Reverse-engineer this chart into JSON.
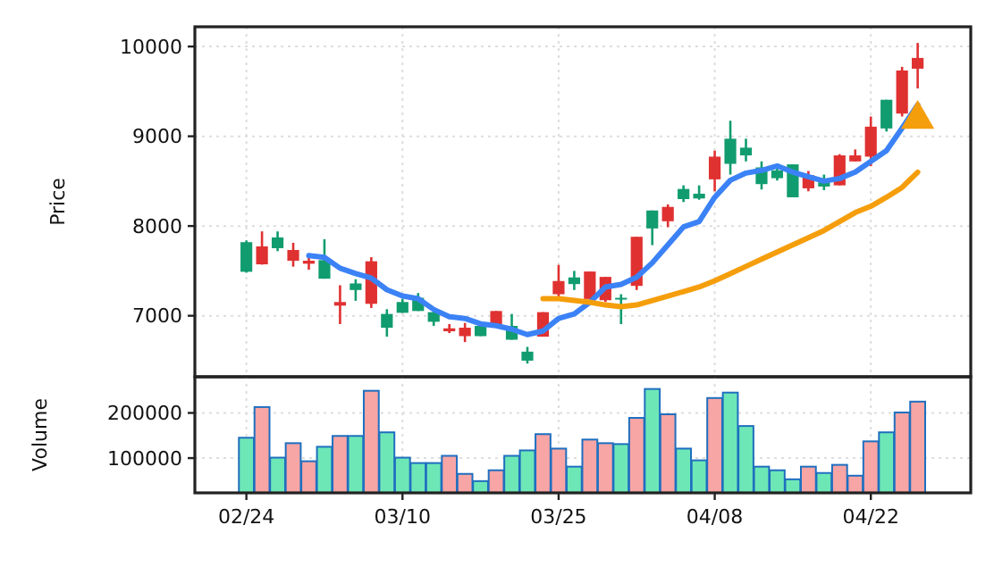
{
  "chart_data": [
    {
      "type": "candlestick",
      "ylabel": "Price",
      "grid": true,
      "tick_labels": "y",
      "ylim": [
        6320,
        10220
      ],
      "yticks": [
        7000,
        8000,
        9000,
        10000
      ],
      "categories": [
        null,
        null,
        null,
        null,
        null,
        null,
        null,
        null,
        null,
        null,
        null,
        null,
        null,
        null,
        null,
        null,
        null,
        null,
        null,
        null,
        null,
        null,
        null,
        null,
        null,
        null,
        null,
        null,
        null,
        null,
        null,
        null,
        null,
        null,
        null,
        null,
        null,
        null,
        null,
        null,
        null,
        null,
        null,
        null
      ],
      "ohlc": [
        [
          7490,
          7840,
          7480,
          7820
        ],
        [
          7773,
          7940,
          7570,
          7573
        ],
        [
          7753,
          7940,
          7720,
          7873
        ],
        [
          7733,
          7813,
          7547,
          7613
        ],
        [
          7613,
          7653,
          7513,
          7580
        ],
        [
          7413,
          7853,
          7413,
          7620
        ],
        [
          7153,
          7340,
          6907,
          7113
        ],
        [
          7287,
          7407,
          7167,
          7360
        ],
        [
          7607,
          7653,
          7087,
          7133
        ],
        [
          6867,
          7073,
          6767,
          7020
        ],
        [
          7033,
          7187,
          7033,
          7153
        ],
        [
          7053,
          7253,
          7053,
          7200
        ],
        [
          6933,
          7053,
          6887,
          7040
        ],
        [
          6860,
          6907,
          6807,
          6827
        ],
        [
          6867,
          6920,
          6707,
          6773
        ],
        [
          6773,
          6920,
          6773,
          6887
        ],
        [
          7053,
          7053,
          6907,
          6907
        ],
        [
          6733,
          7020,
          6733,
          6887
        ],
        [
          6500,
          6653,
          6467,
          6600
        ],
        [
          7040,
          7040,
          6767,
          6767
        ],
        [
          7387,
          7567,
          7200,
          7240
        ],
        [
          7353,
          7500,
          7287,
          7427
        ],
        [
          7493,
          7493,
          7187,
          7187
        ],
        [
          7433,
          7433,
          7153,
          7173
        ],
        [
          7187,
          7240,
          6907,
          7200
        ],
        [
          7880,
          7880,
          7287,
          7333
        ],
        [
          7973,
          8173,
          7787,
          8173
        ],
        [
          8213,
          8240,
          7987,
          8053
        ],
        [
          8300,
          8453,
          8267,
          8413
        ],
        [
          8307,
          8453,
          8293,
          8360
        ],
        [
          8773,
          8840,
          8387,
          8520
        ],
        [
          8693,
          9173,
          8573,
          8973
        ],
        [
          8787,
          8973,
          8720,
          8873
        ],
        [
          8467,
          8720,
          8407,
          8653
        ],
        [
          8533,
          8667,
          8507,
          8620
        ],
        [
          8320,
          8687,
          8320,
          8687
        ],
        [
          8567,
          8613,
          8387,
          8420
        ],
        [
          8440,
          8573,
          8400,
          8487
        ],
        [
          8787,
          8800,
          8453,
          8453
        ],
        [
          8787,
          8853,
          8720,
          8720
        ],
        [
          9107,
          9220,
          8667,
          8773
        ],
        [
          9087,
          9407,
          9053,
          9407
        ],
        [
          9733,
          9773,
          9220,
          9253
        ],
        [
          9873,
          10040,
          9533,
          9753
        ]
      ],
      "colors": [
        "#119c6f",
        "#e03131",
        "#119c6f",
        "#e03131",
        "#e03131",
        "#119c6f",
        "#e03131",
        "#119c6f",
        "#e03131",
        "#119c6f",
        "#119c6f",
        "#119c6f",
        "#119c6f",
        "#e03131",
        "#e03131",
        "#119c6f",
        "#e03131",
        "#119c6f",
        "#119c6f",
        "#e03131",
        "#e03131",
        "#119c6f",
        "#e03131",
        "#e03131",
        "#119c6f",
        "#e03131",
        "#119c6f",
        "#e03131",
        "#119c6f",
        "#119c6f",
        "#e03131",
        "#119c6f",
        "#119c6f",
        "#119c6f",
        "#119c6f",
        "#119c6f",
        "#e03131",
        "#119c6f",
        "#e03131",
        "#e03131",
        "#e03131",
        "#119c6f",
        "#e03131",
        "#e03131"
      ],
      "series": [
        {
          "type": "line",
          "color": "#3b82f6",
          "values": [
            null,
            null,
            null,
            null,
            7670,
            7650,
            7530,
            7470,
            7420,
            7290,
            7220,
            7190,
            7070,
            6990,
            6970,
            6910,
            6890,
            6850,
            6790,
            6830,
            6970,
            7020,
            7150,
            7320,
            7350,
            7430,
            7590,
            7790,
            7990,
            8050,
            8320,
            8510,
            8590,
            8620,
            8670,
            8600,
            8550,
            8500,
            8530,
            8600,
            8720,
            8840,
            9090,
            9350
          ]
        },
        {
          "type": "line",
          "color": "#f59e0b",
          "values": [
            null,
            null,
            null,
            null,
            null,
            null,
            null,
            null,
            null,
            null,
            null,
            null,
            null,
            null,
            null,
            null,
            null,
            null,
            null,
            7190,
            7190,
            7170,
            7150,
            7120,
            7100,
            7120,
            7170,
            7220,
            7270,
            7320,
            7390,
            7470,
            7550,
            7630,
            7710,
            7790,
            7870,
            7950,
            8050,
            8150,
            8220,
            8320,
            8430,
            8600
          ]
        },
        {
          "type": "scatter",
          "marker": "triangle",
          "color": "#f59e0b",
          "values": [
            null,
            null,
            null,
            null,
            null,
            null,
            null,
            null,
            null,
            null,
            null,
            null,
            null,
            null,
            null,
            null,
            null,
            null,
            null,
            null,
            null,
            null,
            null,
            null,
            null,
            null,
            null,
            null,
            null,
            null,
            null,
            null,
            null,
            null,
            null,
            null,
            null,
            null,
            null,
            null,
            null,
            null,
            null,
            9190
          ]
        }
      ]
    },
    {
      "type": "bar",
      "ylabel": "Volume",
      "grid": true,
      "ylim": [
        23000,
        280000
      ],
      "yticks": [
        100000,
        200000
      ],
      "categories": [
        "02/24",
        null,
        null,
        null,
        null,
        null,
        null,
        null,
        null,
        null,
        "03/10",
        null,
        null,
        null,
        null,
        null,
        null,
        null,
        null,
        null,
        "03/25",
        null,
        null,
        null,
        null,
        null,
        null,
        null,
        null,
        null,
        "04/08",
        null,
        null,
        null,
        null,
        null,
        null,
        null,
        null,
        null,
        "04/22",
        null,
        null,
        null
      ],
      "values": [
        145000,
        213000,
        101000,
        133000,
        93000,
        125000,
        149000,
        149000,
        249000,
        157000,
        101000,
        89000,
        89000,
        105000,
        65000,
        49000,
        73000,
        105000,
        117000,
        153000,
        121000,
        81000,
        141000,
        133000,
        131000,
        189000,
        253000,
        197000,
        121000,
        95000,
        233000,
        245000,
        171000,
        81000,
        73000,
        53000,
        81000,
        67000,
        85000,
        61000,
        137000,
        157000,
        201000,
        225000
      ],
      "colors": [
        "#6ee7b7",
        "#f8a5a5",
        "#6ee7b7",
        "#f8a5a5",
        "#f8a5a5",
        "#6ee7b7",
        "#f8a5a5",
        "#6ee7b7",
        "#f8a5a5",
        "#6ee7b7",
        "#6ee7b7",
        "#6ee7b7",
        "#6ee7b7",
        "#f8a5a5",
        "#f8a5a5",
        "#6ee7b7",
        "#f8a5a5",
        "#6ee7b7",
        "#6ee7b7",
        "#f8a5a5",
        "#f8a5a5",
        "#6ee7b7",
        "#f8a5a5",
        "#f8a5a5",
        "#6ee7b7",
        "#f8a5a5",
        "#6ee7b7",
        "#f8a5a5",
        "#6ee7b7",
        "#6ee7b7",
        "#f8a5a5",
        "#6ee7b7",
        "#6ee7b7",
        "#6ee7b7",
        "#6ee7b7",
        "#6ee7b7",
        "#f8a5a5",
        "#6ee7b7",
        "#f8a5a5",
        "#f8a5a5",
        "#f8a5a5",
        "#6ee7b7",
        "#f8a5a5",
        "#f8a5a5"
      ]
    }
  ]
}
